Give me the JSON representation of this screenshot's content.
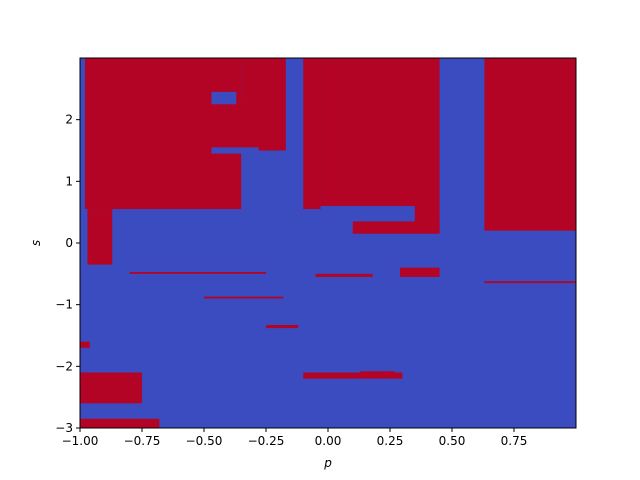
{
  "chart_data": {
    "type": "heatmap",
    "title": "",
    "xlabel": "p",
    "ylabel": "s",
    "xlim": [
      -1.0,
      1.0
    ],
    "ylim": [
      -3.0,
      3.0
    ],
    "xticks": [
      -1.0,
      -0.75,
      -0.5,
      -0.25,
      0.0,
      0.25,
      0.5,
      0.75
    ],
    "xtick_labels": [
      "−1.00",
      "−0.75",
      "−0.50",
      "−0.25",
      "0.00",
      "0.25",
      "0.50",
      "0.75"
    ],
    "yticks": [
      -3,
      -2,
      -1,
      0,
      1,
      2
    ],
    "ytick_labels": [
      "−3",
      "−2",
      "−1",
      "0",
      "1",
      "2"
    ],
    "grid": false,
    "legend": "none",
    "colormap": "coolwarm",
    "colors": {
      "low": "#3b4cc0",
      "high": "#b40426"
    },
    "background_value": "low",
    "high_regions": [
      {
        "p": [
          -0.98,
          -0.35
        ],
        "s": [
          0.55,
          3.0
        ]
      },
      {
        "p": [
          -0.97,
          -0.87
        ],
        "s": [
          -0.35,
          0.55
        ]
      },
      {
        "p": [
          -0.35,
          -0.17
        ],
        "s": [
          1.5,
          3.0
        ]
      },
      {
        "p": [
          -0.1,
          -0.03
        ],
        "s": [
          0.55,
          3.0
        ]
      },
      {
        "p": [
          -0.03,
          0.45
        ],
        "s": [
          0.6,
          3.0
        ]
      },
      {
        "p": [
          0.35,
          0.45
        ],
        "s": [
          0.25,
          0.6
        ]
      },
      {
        "p": [
          0.63,
          1.0
        ],
        "s": [
          0.9,
          3.0
        ]
      },
      {
        "p": [
          0.6,
          1.0
        ],
        "s": [
          0.2,
          0.9
        ]
      },
      {
        "p": [
          -0.55,
          -0.3
        ],
        "s": [
          1.55,
          2.3
        ]
      },
      {
        "p": [
          0.1,
          0.45
        ],
        "s": [
          0.15,
          0.35
        ]
      },
      {
        "p": [
          0.29,
          0.45
        ],
        "s": [
          -0.55,
          -0.4
        ]
      },
      {
        "p": [
          -0.1,
          0.3
        ],
        "s": [
          -2.2,
          -2.1
        ]
      },
      {
        "p": [
          -1.0,
          -0.75
        ],
        "s": [
          -2.6,
          -2.1
        ]
      },
      {
        "p": [
          -1.0,
          -0.68
        ],
        "s": [
          -3.0,
          -2.85
        ]
      },
      {
        "p": [
          -1.0,
          -0.96
        ],
        "s": [
          -1.7,
          -1.6
        ]
      },
      {
        "p": [
          -0.8,
          -0.25
        ],
        "s": [
          -0.5,
          -0.47
        ]
      },
      {
        "p": [
          -0.5,
          -0.18
        ],
        "s": [
          -0.9,
          -0.87
        ]
      },
      {
        "p": [
          0.6,
          1.0
        ],
        "s": [
          -0.65,
          -0.62
        ]
      },
      {
        "p": [
          -0.25,
          -0.12
        ],
        "s": [
          -1.38,
          -1.33
        ]
      },
      {
        "p": [
          -0.05,
          0.18
        ],
        "s": [
          -0.55,
          -0.5
        ]
      },
      {
        "p": [
          0.13,
          0.27
        ],
        "s": [
          -2.12,
          -2.08
        ]
      }
    ],
    "low_regions": [
      {
        "p": [
          0.47,
          0.63
        ],
        "s": [
          -3.0,
          3.0
        ]
      },
      {
        "p": [
          -0.47,
          -0.37
        ],
        "s": [
          2.25,
          2.45
        ]
      },
      {
        "p": [
          -0.47,
          -0.28
        ],
        "s": [
          1.45,
          1.55
        ]
      },
      {
        "p": [
          0.58,
          0.63
        ],
        "s": [
          0.2,
          0.9
        ]
      }
    ]
  }
}
